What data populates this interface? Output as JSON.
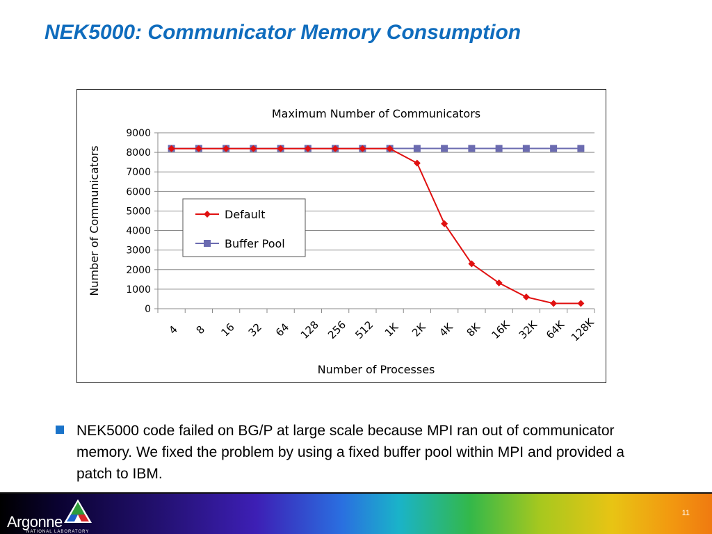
{
  "slide": {
    "title": "NEK5000: Communicator Memory Consumption",
    "bullet": "NEK5000 code failed on BG/P at large scale because MPI ran out of communicator memory. We fixed the problem by using a fixed buffer pool within MPI and provided a patch to IBM.",
    "page_number": "11"
  },
  "footer": {
    "logo_name": "Argonne",
    "logo_sub": "NATIONAL LABORATORY"
  },
  "colors": {
    "title": "#0f6cbd",
    "default_series": "#e01010",
    "buffer_series": "#6b6bb0",
    "bullet": "#1a73c9"
  },
  "chart_data": {
    "type": "line",
    "title": "Maximum Number of Communicators",
    "xlabel": "Number of Processes",
    "ylabel": "Number of Communicators",
    "ylim": [
      0,
      9000
    ],
    "yticks": [
      0,
      1000,
      2000,
      3000,
      4000,
      5000,
      6000,
      7000,
      8000,
      9000
    ],
    "categories": [
      "4",
      "8",
      "16",
      "32",
      "64",
      "128",
      "256",
      "512",
      "1K",
      "2K",
      "4K",
      "8K",
      "16K",
      "32K",
      "64K",
      "128K"
    ],
    "grid": true,
    "legend_position": "center-left",
    "series": [
      {
        "name": "Default",
        "marker": "diamond",
        "values": [
          8190,
          8190,
          8190,
          8190,
          8190,
          8190,
          8190,
          8190,
          8190,
          7450,
          4350,
          2300,
          1320,
          600,
          270,
          270
        ]
      },
      {
        "name": "Buffer Pool",
        "marker": "square",
        "values": [
          8200,
          8200,
          8200,
          8200,
          8200,
          8200,
          8200,
          8200,
          8200,
          8200,
          8200,
          8200,
          8200,
          8200,
          8200,
          8200
        ]
      }
    ]
  }
}
